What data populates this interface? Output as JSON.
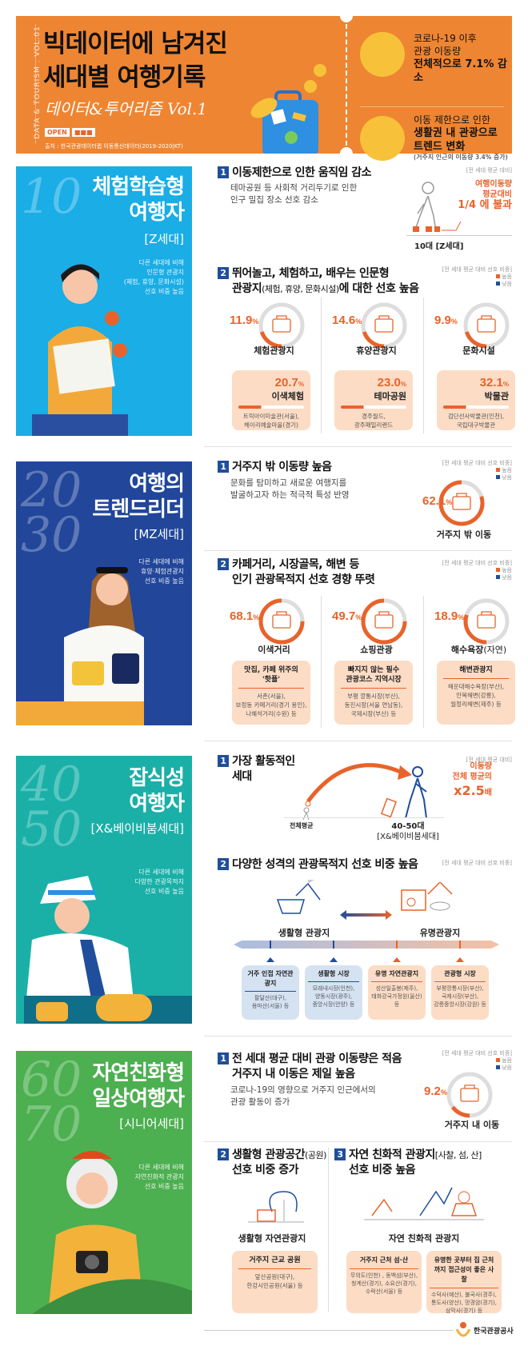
{
  "colors": {
    "orange": "#EE8532",
    "accent": "#E8632B",
    "navy": "#1F4E9C",
    "z": "#1AADE6",
    "mz": "#21469A",
    "x": "#1AB0A8",
    "senior": "#4CAF50"
  },
  "header": {
    "vertical": "DATA & TOURISM . VOL.01",
    "title1": "빅데이터에 남겨진",
    "title2": "세대별 여행기록",
    "subtitle": "데이터&투어리즘 Vol.1",
    "open": "OPEN",
    "source": "출처 : 한국관광데이터랩 이동통신데이터(2019-2020|KT)",
    "info1": {
      "l1": "코로나-19 이후",
      "l2": "관광 이동량",
      "l3": "전체적으로 7.1% 감소",
      "icon": "mask-icon"
    },
    "info2": {
      "l1": "이동 제한으로 인한",
      "l2": "생활권 내 관광으로",
      "l3": "트렌드 변화",
      "l4": "(거주지 인근의 이동량 3.4% 증가)",
      "icon": "location-pin-icon"
    }
  },
  "legend": {
    "high": "높음",
    "low": "낮음",
    "note_pref": "[전 세대 평균 대비 선호 비중]",
    "note_avg": "[전 세대 평균 대비]"
  },
  "z": {
    "num": "10",
    "title1": "체험학습형",
    "title2": "여행자",
    "gen": "[Z세대]",
    "desc": [
      "다른 세대에 비해",
      "인문형 관광지",
      "(체험, 휴양, 문화시설)",
      "선호 비중 높음"
    ],
    "s1": {
      "n": "1",
      "title": "이동제한으로 인한 움직임 감소",
      "desc1": "테마공원 등 사회적 거리두기로 인한",
      "desc2": "인구 밀집 장소 선호 감소",
      "stat1": "여행이동량",
      "stat2": "평균대비",
      "stat3": "1/4 에 불과",
      "label": "10대 [Z세대]"
    },
    "s2": {
      "n": "2",
      "title1": "뛰어놀고, 체험하고, 배우는 인문형",
      "title2a": "관광지",
      "title2b": "(체험, 휴양, 문화시설)",
      "title2c": "에 대한 선호 높음",
      "items": [
        {
          "pct": "11.9",
          "name": "체험관광지",
          "icon": "suitcase-icon",
          "sub_pct": "20.7",
          "sub_name": "이색체험",
          "sub_icon": "sailboat-icon",
          "places": [
            "트릭아이미술관(서울),",
            "헤이리예술마을(경기)"
          ]
        },
        {
          "pct": "14.6",
          "name": "휴양관광지",
          "icon": "palm-tree-icon",
          "sub_pct": "23.0",
          "sub_name": "테마공원",
          "sub_icon": "ferris-wheel-icon",
          "places": [
            "경주월드,",
            "광주패밀리랜드"
          ]
        },
        {
          "pct": "9.9",
          "name": "문화시설",
          "icon": "theater-icon",
          "sub_pct": "32.1",
          "sub_name": "박물관",
          "sub_icon": "museum-artifact-icon",
          "places": [
            "검단선사박물관(인천),",
            "국립대구박물관"
          ]
        }
      ]
    }
  },
  "mz": {
    "num": "2030",
    "title1": "여행의",
    "title2": "트렌드리더",
    "gen": "[MZ세대]",
    "desc": [
      "다른 세대에 비해",
      "휴양·체험관광지",
      "선호 비중 높음"
    ],
    "s1": {
      "n": "1",
      "title": "거주지 밖 이동량 높음",
      "desc1": "문화를 탐미하고 새로운 여행지를",
      "desc2": "발굴하고자 하는 적극적 특성 반영",
      "pct": "62.1",
      "label": "거주지 밖 이동"
    },
    "s2": {
      "n": "2",
      "title1": "카페거리, 시장골목, 해변 등",
      "title2": "인기 관광목적지 선호 경향 뚜렷",
      "items": [
        {
          "pct": "68.1",
          "name": "이색거리",
          "name_extra": "",
          "icon": "cafe-shopping-icon",
          "card_title": "맛집, 카페 위주의 '핫플'",
          "places": [
            "서촌(서울),",
            "보정동 카페거리(경기 용인),",
            "나혜석거리(수원) 등"
          ]
        },
        {
          "pct": "49.7",
          "name": "쇼핑관광",
          "name_extra": "",
          "icon": "shopping-bag-icon",
          "card_title": "빠지지 않는 필수 관광코스 지역시장",
          "places": [
            "부평 깡통시장(부산),",
            "동진시장(서울 연남동),",
            "국제시장(부산) 등"
          ]
        },
        {
          "pct": "18.9",
          "name": "해수욕장",
          "name_extra": "(자연)",
          "icon": "beach-chair-icon",
          "card_title": "해변관광지",
          "places": [
            "해운대해수욕장(부산),",
            "안목해변(강릉),",
            "월정리해변(제주) 등"
          ]
        }
      ]
    }
  },
  "x": {
    "num": "4050",
    "title1": "잡식성",
    "title2": "여행자",
    "gen": "[X&베이비붐세대]",
    "desc": [
      "다른 세대에 비해",
      "다양한 관광목적지",
      "선호 비중 높음"
    ],
    "s1": {
      "n": "1",
      "title1": "가장 활동적인",
      "title2": "세대",
      "stat1": "이동량",
      "stat2": "전체 평균의",
      "stat3": "x2.5",
      "stat4": "배",
      "label_avg": "전체평균",
      "label1": "40-50대",
      "label2": "[X&베이비붐세대]"
    },
    "s2": {
      "n": "2",
      "title": "다양한 성격의 관광목적지 선호 비중 높음",
      "left": "생활형 관광지",
      "right": "유명관광지",
      "cards": [
        {
          "title": "거주 인접 자연관광지",
          "places": [
            "팔달산(대구),",
            "용마산(서울) 등"
          ],
          "tone": "blue"
        },
        {
          "title": "생활형 시장",
          "places": [
            "모래내시장(인천),",
            "양동시장(광주),",
            "중앙시장(안양) 등"
          ],
          "tone": "blue"
        },
        {
          "title": "유명 자연관광지",
          "places": [
            "성산일출봉(제주),",
            "태화강국가정원(울산)",
            "등"
          ],
          "tone": "orange"
        },
        {
          "title": "관광형 시장",
          "places": [
            "부평깡통시장(부산),",
            "국제시장(부산),",
            "강릉중앙시장(강원) 등"
          ],
          "tone": "orange"
        }
      ]
    }
  },
  "senior": {
    "num": "6070",
    "title1": "자연친화형",
    "title2": "일상여행자",
    "gen": "[시니어세대]",
    "desc": [
      "다른 세대에 비해",
      "자연친화적 관광지",
      "선호 비중 높음"
    ],
    "s1": {
      "n": "1",
      "title1": "전 세대 평균 대비 관광 이동량은 적음",
      "title2": "거주지 내 이동은 제일 높음",
      "desc1": "코로나-19의 영향으로 거주지 인근에서의",
      "desc2": "관광 활동이 증가",
      "pct": "9.2",
      "label": "거주지 내 이동"
    },
    "s2": {
      "n": "2",
      "title1a": "생활형 관광공간",
      "title1b": "(공원)",
      "title2": "선호 비중 증가",
      "label": "생활형 자연관광지",
      "card_title": "거주지 근교 공원",
      "places": [
        "앞산공원(대구),",
        "한강시민공원(서울) 등"
      ]
    },
    "s3": {
      "n": "3",
      "title1a": "자연 친화적 관광지",
      "title1b": "[사찰, 섬, 산]",
      "title2": "선호 비중 높음",
      "label": "자연 친화적 관광지",
      "cards": [
        {
          "title": "거주지 근처 섬·산",
          "places": [
            "무의도(인천) , 동백섬(부산),",
            "청계산(경기), 소요산(경기),",
            "수락산(서울) 등"
          ]
        },
        {
          "title": "유명한 곳부터 집 근처 까지 접근성이 좋은 사찰",
          "places": [
            "수덕사(예산), 불국사(경주),",
            "통도사(양산), 망경암(경기),",
            "삼막사(경기) 등"
          ]
        }
      ]
    }
  },
  "footer": {
    "org": "한국관광공사"
  }
}
